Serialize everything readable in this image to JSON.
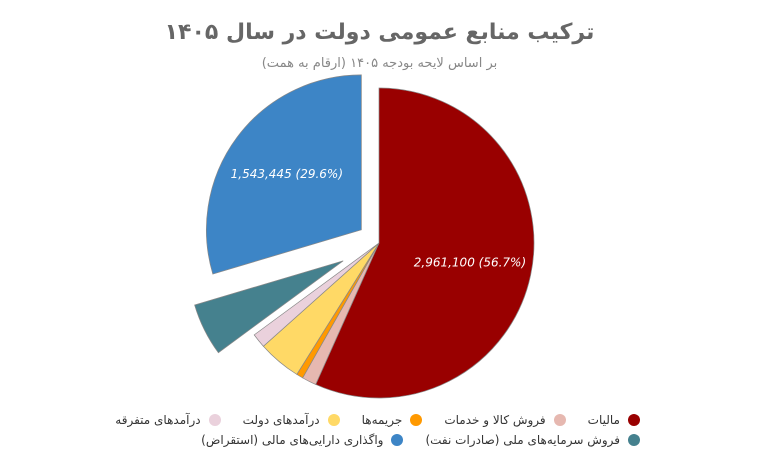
{
  "chart_data": {
    "type": "pie",
    "title": "ترکیب منابع عمومی دولت در سال ۱۴۰۵",
    "subtitle": "بر اساس لایحه بودجه ۱۴۰۵ (ارقام به همت)",
    "legend_position": "bottom",
    "slices": [
      {
        "name": "مالیات",
        "percent": 56.7,
        "value": 2961100,
        "label": "2,961,100 (56.7%)",
        "color": "#990000",
        "exploded": false
      },
      {
        "name": "فروش کالا و خدمات",
        "percent": 1.5,
        "color": "#e6b8b0",
        "exploded": false
      },
      {
        "name": "جریمه‌ها",
        "percent": 0.7,
        "color": "#ff9900",
        "exploded": false
      },
      {
        "name": "درآمدهای دولت",
        "percent": 4.5,
        "color": "#ffd966",
        "exploded": false
      },
      {
        "name": "درآمدهای متفرقه",
        "percent": 1.5,
        "color": "#ead1dc",
        "exploded": false
      },
      {
        "name": "فروش سرمایه‌های ملی (صادرات نفت)",
        "percent": 5.5,
        "color": "#45818e",
        "exploded": true
      },
      {
        "name": "واگذاری دارایی‌های مالی (استقراض)",
        "percent": 29.6,
        "value": 1543445,
        "label": "1,543,445 (29.6%)",
        "color": "#3d85c6",
        "exploded": true
      }
    ]
  }
}
